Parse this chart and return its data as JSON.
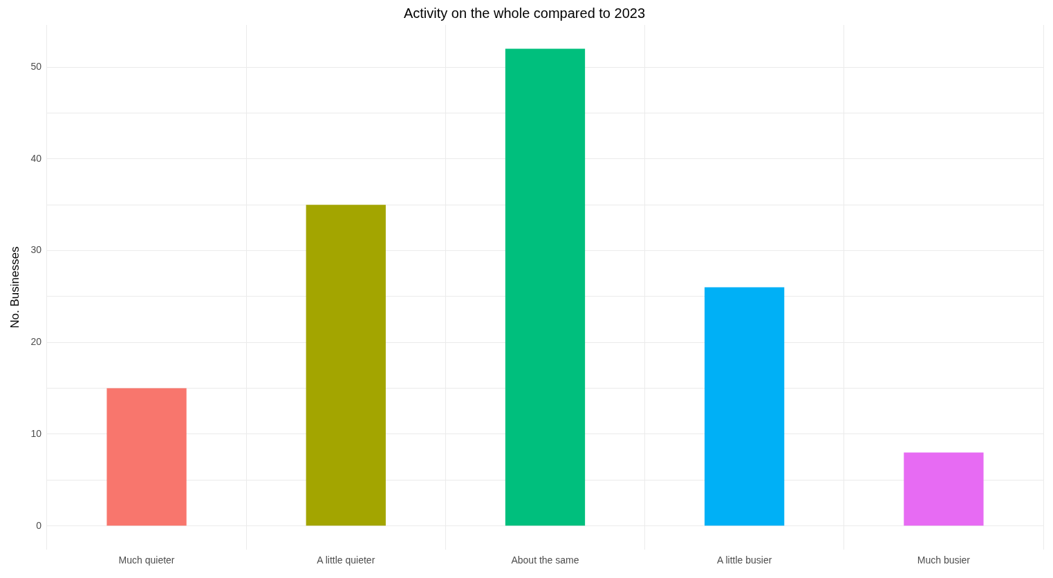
{
  "chart_data": {
    "type": "bar",
    "title": "Activity on the whole compared to 2023",
    "ylabel": "No. Businesses",
    "categories": [
      "Much quieter",
      "A little quieter",
      "About the same",
      "A little busier",
      "Much busier"
    ],
    "values": [
      15,
      35,
      52,
      26,
      8
    ],
    "colors": [
      "#f8766d",
      "#a3a500",
      "#00bf7d",
      "#00b0f6",
      "#e76bf3"
    ],
    "ylim": [
      -2.6,
      54.6
    ],
    "yticks": [
      0,
      {
        "value": 5,
        "label": null
      },
      10,
      {
        "value": 15,
        "label": null
      },
      20,
      {
        "value": 25,
        "label": null
      },
      30,
      {
        "value": 35,
        "label": null
      },
      40,
      {
        "value": 45,
        "label": null
      },
      50
    ],
    "grid": true,
    "legend": false
  }
}
